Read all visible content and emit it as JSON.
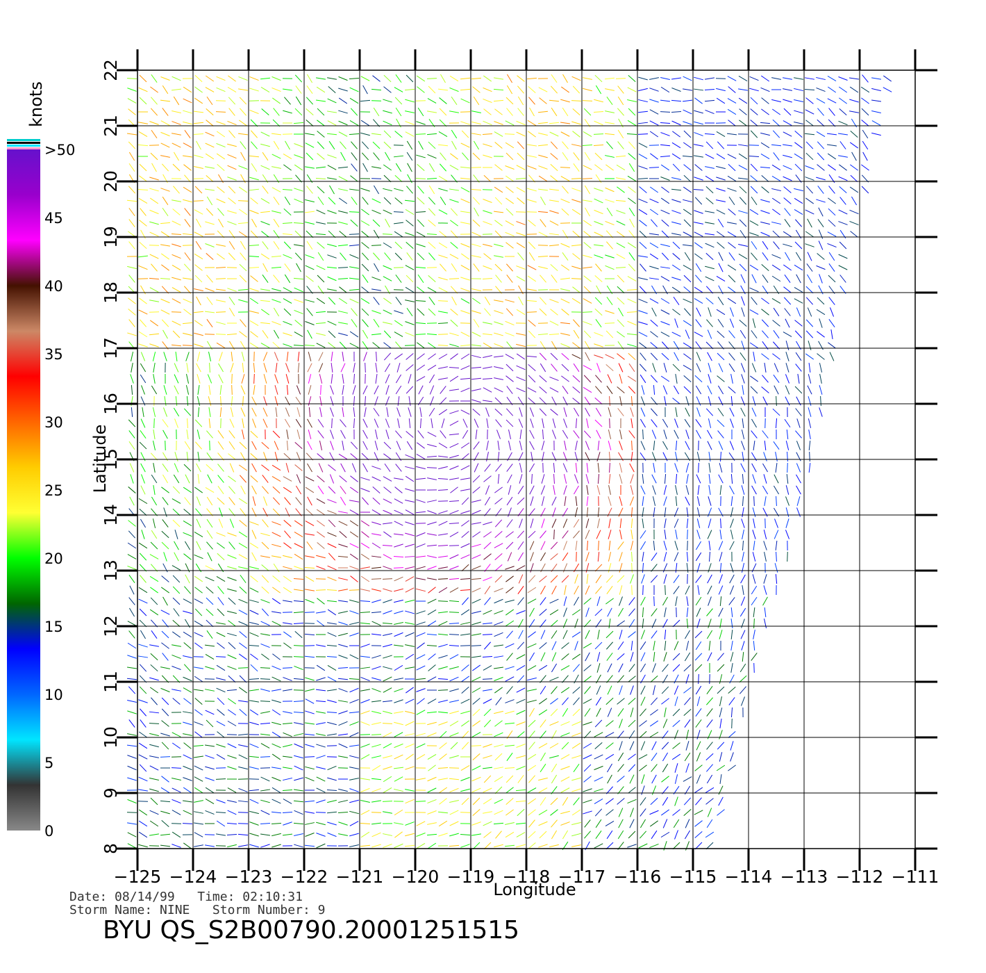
{
  "chart_data": {
    "type": "vector-field",
    "xlabel": "Longitude",
    "ylabel": "Latitude",
    "xlim": [
      -125,
      -111
    ],
    "ylim": [
      8,
      22
    ],
    "x_ticks": [
      "-125",
      "-124",
      "-123",
      "-122",
      "-121",
      "-120",
      "-119",
      "-118",
      "-117",
      "-116",
      "-115",
      "-114",
      "-113",
      "-112",
      "-111"
    ],
    "y_ticks": [
      "8",
      "9",
      "10",
      "11",
      "12",
      "13",
      "14",
      "15",
      "16",
      "17",
      "18",
      "19",
      "20",
      "21",
      "22"
    ],
    "grid": true,
    "colorbar": {
      "unit": "knots",
      "labels": [
        "0",
        "5",
        "10",
        "15",
        "20",
        "25",
        "30",
        "35",
        "40",
        "45",
        ">50"
      ],
      "range": [
        0,
        50
      ],
      "colors": [
        "#888888",
        "#333333",
        "#00e5ff",
        "#0066ff",
        "#0000ff",
        "#006600",
        "#00ff00",
        "#ffff33",
        "#ffcc00",
        "#ff6600",
        "#ff0000",
        "#cc8866",
        "#441100",
        "#ff00ff",
        "#9900cc",
        "#6611cc"
      ]
    },
    "storm_center": {
      "lon": -119.3,
      "lat": 15.6
    },
    "swath_edge": [
      [
        -111.4,
        22
      ],
      [
        -112.2,
        18.4
      ],
      [
        -113.0,
        14.2
      ],
      [
        -113.8,
        11.6
      ],
      [
        -114.6,
        8
      ]
    ]
  },
  "info": {
    "line1": "Date: 08/14/99   Time: 02:10:31",
    "line2": "Storm Name: NINE   Storm Number: 9"
  },
  "title": "BYU QS_S2B00790.20001251515"
}
